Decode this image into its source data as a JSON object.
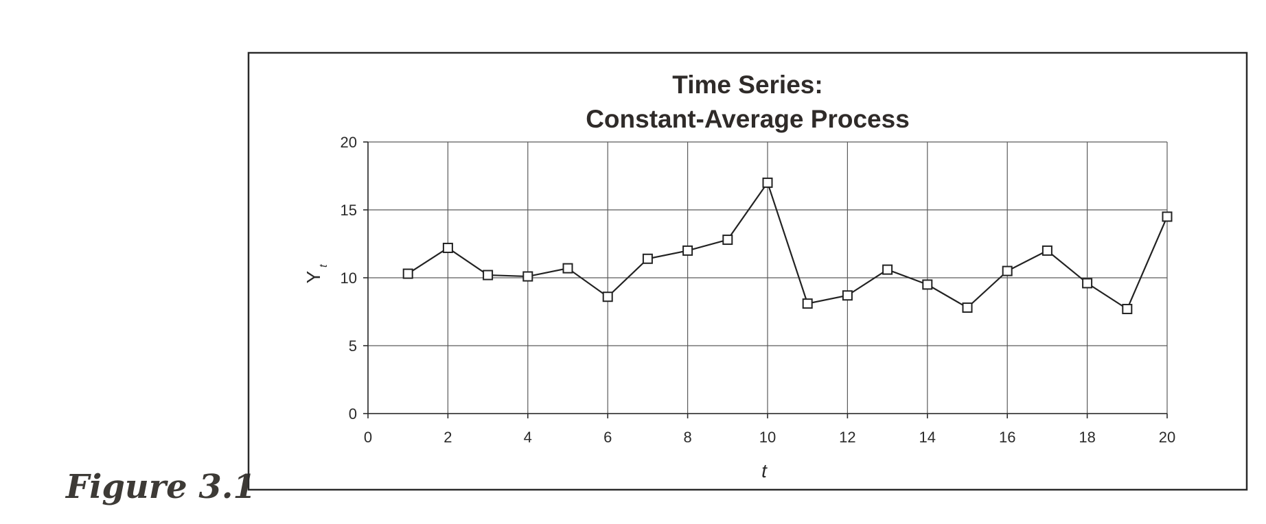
{
  "figure_label": "Figure 3.1",
  "chart_data": {
    "type": "line",
    "title": [
      "Time Series:",
      "Constant-Average Process"
    ],
    "xlabel": "t",
    "ylabel": "Y",
    "ylabel_subscript": "t",
    "xlim": [
      0,
      20
    ],
    "ylim": [
      0,
      20
    ],
    "xticks": [
      "0",
      "2",
      "4",
      "6",
      "8",
      "10",
      "12",
      "14",
      "16",
      "18",
      "20"
    ],
    "yticks": [
      "0",
      "5",
      "10",
      "15",
      "20"
    ],
    "grid": true,
    "marker": "open-square",
    "series": [
      {
        "x": [
          1,
          2,
          3,
          4,
          5,
          6,
          7,
          8,
          9,
          10,
          11,
          12,
          13,
          14,
          15,
          16,
          17,
          18,
          19,
          20
        ],
        "values": [
          10.3,
          12.2,
          10.2,
          10.1,
          10.7,
          8.6,
          11.4,
          12.0,
          12.8,
          17.0,
          8.1,
          8.7,
          10.6,
          9.5,
          7.8,
          10.5,
          12.0,
          9.6,
          7.7,
          14.5
        ]
      }
    ],
    "colors": {
      "line": "#222222",
      "grid": "#5a5a5a",
      "title": "#2f2b29"
    }
  }
}
